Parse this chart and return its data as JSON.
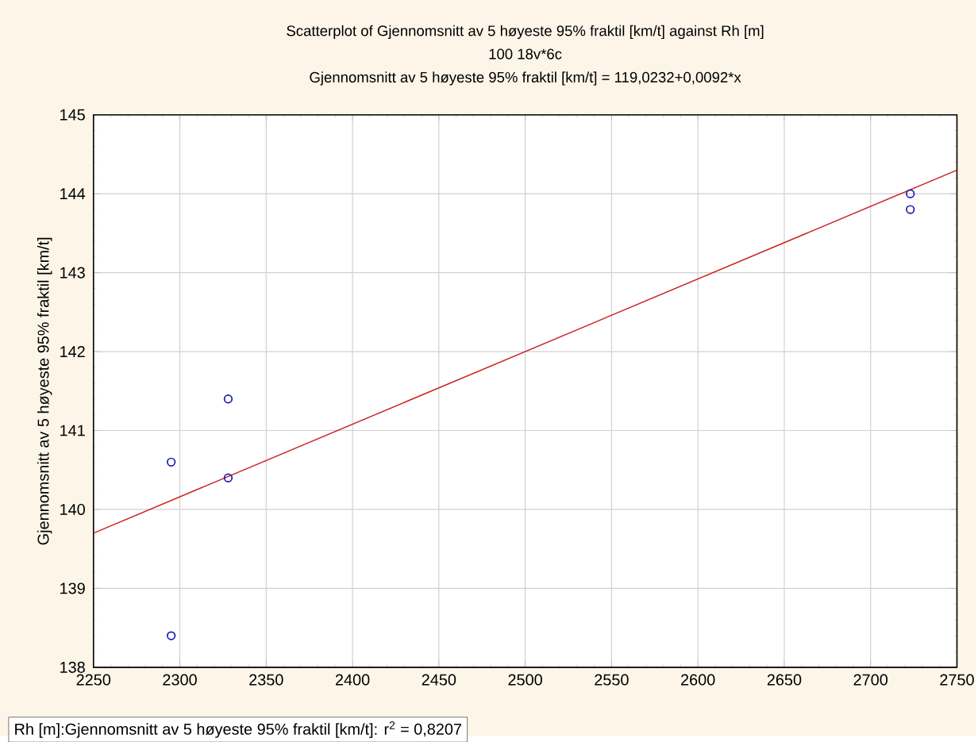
{
  "chart_data": {
    "type": "scatter",
    "title": "Scatterplot of Gjennomsnitt av 5 høyeste 95% fraktil [km/t] against Rh [m]",
    "subtitle": "100 18v*6c",
    "annotations": [
      "Gjennomsnitt av 5 høyeste 95% fraktil [km/t] = 119,0232+0,0092*x",
      "Rh [m]:Gjennomsnitt av 5 høyeste 95% fraktil [km/t]:  r$^{2}$ = 0,8207"
    ],
    "ylabel": "Gjennomsnitt av 5 høyeste 95% fraktil [km/t]",
    "series": [
      {
        "color": "#1a1ab4",
        "marker": "circle",
        "x": [
          2295,
          2295,
          2328,
          2328,
          2723,
          2723
        ],
        "values": [
          140.6,
          138.4,
          141.4,
          140.4,
          144.0,
          143.8
        ]
      },
      {
        "type": "line",
        "color": "#cc2020",
        "marker": "none",
        "x": [
          2250,
          2750
        ],
        "values": [
          139.7,
          144.3
        ]
      }
    ],
    "xlim": [
      2250,
      2750
    ],
    "xticks": [
      2250,
      2300,
      2350,
      2400,
      2450,
      2500,
      2550,
      2600,
      2650,
      2700,
      2750
    ],
    "ylim": [
      138,
      145
    ],
    "yticks": [
      138,
      139,
      140,
      141,
      142,
      143,
      144,
      145
    ],
    "grid": true
  }
}
